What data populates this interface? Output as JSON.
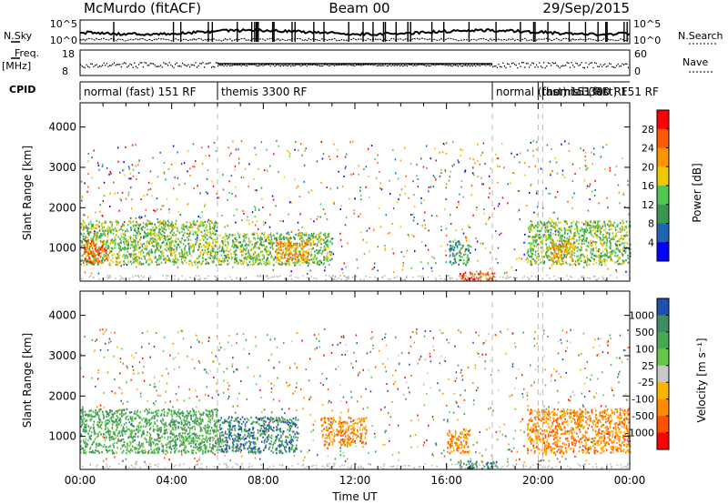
{
  "header": {
    "station": "McMurdo (fitACF)",
    "beam": "Beam 00",
    "date": "29/Sep/2015"
  },
  "side_labels": {
    "nsky": "N.Sky",
    "nsearch": "N.Search",
    "freq": "Freq.",
    "freq_unit": "[MHz]",
    "nave": "Nave",
    "cpid": "CPID"
  },
  "noise_axis": {
    "left_ticks": [
      "10^5",
      "10^0"
    ],
    "right_ticks": [
      "10^5",
      "10^0"
    ]
  },
  "freq_axis": {
    "left_ticks": [
      "18",
      "8"
    ],
    "right_ticks": [
      "60",
      "0"
    ]
  },
  "cpid_segments": [
    {
      "label": "normal (fast) 151 RF",
      "start": 0,
      "end": 6
    },
    {
      "label": "themis 3300 RF",
      "start": 6,
      "end": 18
    },
    {
      "label": "normal (fast) 151 RF",
      "start": 18,
      "end": 20
    },
    {
      "label": "themis 3300 RF",
      "start": 20,
      "end": 20.2
    },
    {
      "label": "normal (fast) 151 RF",
      "start": 20.2,
      "end": 24
    }
  ],
  "chart_data": [
    {
      "type": "heatmap",
      "xlabel": "",
      "ylabel": "Slant Range [km]",
      "xlim": [
        0,
        24
      ],
      "ylim": [
        180,
        4600
      ],
      "yticks": [
        1000,
        2000,
        3000,
        4000
      ],
      "colorbar_label": "Power [dB]",
      "colorbar_ticks": [
        "28",
        "24",
        "20",
        "16",
        "12",
        "8",
        "4"
      ],
      "colors": [
        "#ff0000",
        "#ff5a00",
        "#ff9600",
        "#f0c800",
        "#50c850",
        "#3c9650",
        "#1e64b4",
        "#0000ff"
      ],
      "regions": [
        {
          "t0": 0.0,
          "t1": 6.0,
          "r0": 600,
          "r1": 1700,
          "level": 4
        },
        {
          "t0": 0.1,
          "t1": 1.2,
          "r0": 650,
          "r1": 1200,
          "level": 1
        },
        {
          "t0": 6.0,
          "t1": 11.0,
          "r0": 600,
          "r1": 1400,
          "level": 4
        },
        {
          "t0": 8.5,
          "t1": 10.0,
          "r0": 700,
          "r1": 1200,
          "level": 2
        },
        {
          "t0": 16.1,
          "t1": 17.0,
          "r0": 600,
          "r1": 1200,
          "level": 5
        },
        {
          "t0": 16.5,
          "t1": 18.2,
          "r0": 220,
          "r1": 420,
          "level": 1
        },
        {
          "t0": 19.5,
          "t1": 24.0,
          "r0": 600,
          "r1": 1700,
          "level": 4
        },
        {
          "t0": 20.5,
          "t1": 21.5,
          "r0": 700,
          "r1": 1200,
          "level": 2
        }
      ]
    },
    {
      "type": "heatmap",
      "xlabel": "Time UT",
      "ylabel": "Slant Range [km]",
      "xlim": [
        0,
        24
      ],
      "ylim": [
        180,
        4600
      ],
      "yticks": [
        1000,
        2000,
        3000,
        4000
      ],
      "xticks": [
        "00:00",
        "04:00",
        "08:00",
        "12:00",
        "16:00",
        "20:00",
        "00:00"
      ],
      "colorbar_label": "Velocity [m s⁻¹]",
      "colorbar_ticks": [
        "1000",
        "500",
        "100",
        "25",
        "-25",
        "-100",
        "-500",
        "-1000"
      ],
      "colors": [
        "#1e50b4",
        "#3c8c64",
        "#46aa50",
        "#64c846",
        "#c8c8c8",
        "#ffb400",
        "#ff8c00",
        "#ff5000",
        "#ff0000"
      ],
      "regions": [
        {
          "t0": 0.0,
          "t1": 6.0,
          "r0": 600,
          "r1": 1700,
          "level": 2
        },
        {
          "t0": 6.0,
          "t1": 9.5,
          "r0": 600,
          "r1": 1500,
          "level": 1
        },
        {
          "t0": 10.5,
          "t1": 12.5,
          "r0": 800,
          "r1": 1500,
          "level": 6
        },
        {
          "t0": 16.0,
          "t1": 17.0,
          "r0": 600,
          "r1": 1200,
          "level": 6
        },
        {
          "t0": 16.5,
          "t1": 18.2,
          "r0": 220,
          "r1": 420,
          "level": 1
        },
        {
          "t0": 19.5,
          "t1": 24.0,
          "r0": 600,
          "r1": 1700,
          "level": 6
        }
      ]
    }
  ]
}
